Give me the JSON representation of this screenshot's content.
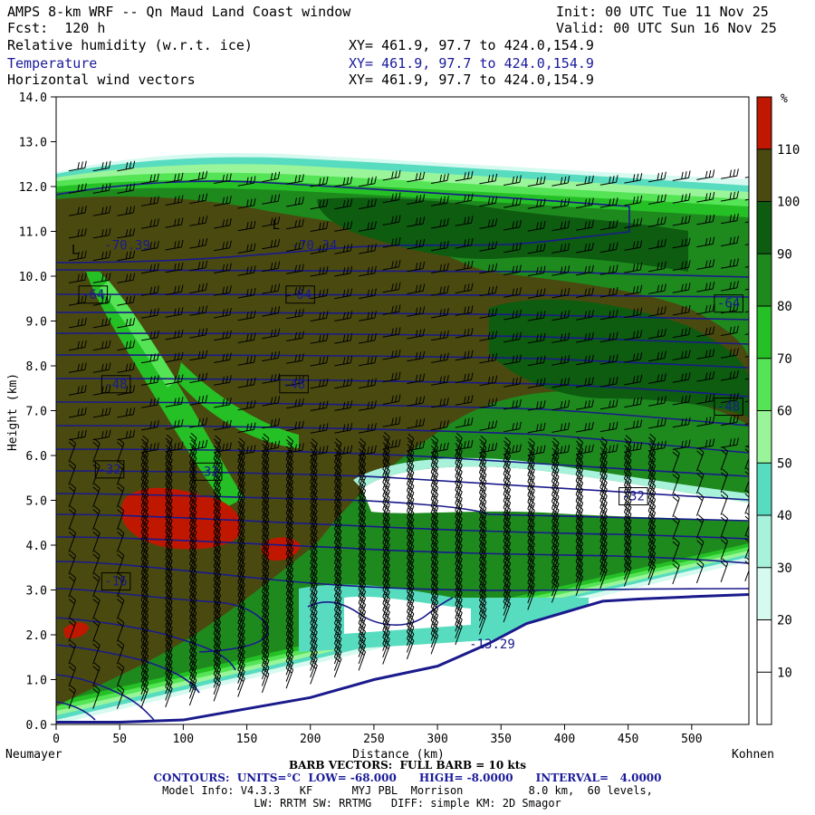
{
  "header": {
    "title": "AMPS 8-km WRF -- Qn Maud Land Coast window",
    "init": "Init: 00 UTC Tue 11 Nov 25",
    "fcst": "Fcst:  120 h",
    "valid": "Valid: 00 UTC Sun 16 Nov 25",
    "fields": [
      {
        "name": "Relative humidity (w.r.t. ice)",
        "xy": "XY= 461.9, 97.7 to 424.0,154.9"
      },
      {
        "name": "Temperature",
        "xy": "XY= 461.9, 97.7 to 424.0,154.9"
      },
      {
        "name": "Horizontal wind vectors",
        "xy": "XY= 461.9, 97.7 to 424.0,154.9"
      }
    ]
  },
  "colors": {
    "temperature_contour": "#1a1a8c",
    "terrain": "#ffffff",
    "rh_bins": [
      "#ffffff",
      "#ffffff",
      "#d6faf0",
      "#a8f2dc",
      "#58dcc0",
      "#9af59a",
      "#55e455",
      "#25c025",
      "#1e8a1e",
      "#0d5c10",
      "#4a4a10",
      "#c01800"
    ]
  },
  "chart_data": {
    "type": "heatmap",
    "subtype": "vertical cross-section",
    "ylabel": "Height (km)",
    "xlabel": "Distance (km)",
    "xlim": [
      0,
      545
    ],
    "ylim": [
      0,
      14
    ],
    "x_ticks": [
      0,
      50,
      100,
      150,
      200,
      250,
      300,
      350,
      400,
      450,
      500
    ],
    "y_ticks": [
      "0.0",
      "1.0",
      "2.0",
      "3.0",
      "4.0",
      "5.0",
      "6.0",
      "7.0",
      "8.0",
      "9.0",
      "10.0",
      "11.0",
      "12.0",
      "13.0",
      "14.0"
    ],
    "left_endpoint": "Neumayer",
    "right_endpoint": "Kohnen",
    "colorbar": {
      "unit": "%",
      "labels": [
        "10",
        "20",
        "30",
        "40",
        "50",
        "60",
        "70",
        "80",
        "90",
        "100",
        "110"
      ],
      "bounds": [
        0,
        120
      ]
    },
    "terrain_height": {
      "x": [
        0,
        50,
        100,
        150,
        200,
        250,
        300,
        340,
        370,
        400,
        430,
        460,
        500,
        545
      ],
      "y": [
        0.05,
        0.05,
        0.1,
        0.35,
        0.6,
        1.0,
        1.3,
        1.8,
        2.25,
        2.5,
        2.75,
        2.8,
        2.85,
        2.9
      ]
    },
    "temperature_labels": [
      {
        "text": "-70.39",
        "x": 38,
        "y": 10.7
      },
      {
        "text": "-70.34",
        "x": 185,
        "y": 10.7
      },
      {
        "text": "-64",
        "x": 20,
        "y": 9.6
      },
      {
        "text": "-64",
        "x": 183,
        "y": 9.6
      },
      {
        "text": "-64",
        "x": 520,
        "y": 9.4
      },
      {
        "text": "-48",
        "x": 38,
        "y": 7.6
      },
      {
        "text": "-48",
        "x": 178,
        "y": 7.6
      },
      {
        "text": "-48",
        "x": 520,
        "y": 7.1
      },
      {
        "text": "-32",
        "x": 33,
        "y": 5.7
      },
      {
        "text": "-32",
        "x": 110,
        "y": 5.65
      },
      {
        "text": "-32",
        "x": 445,
        "y": 5.1
      },
      {
        "text": "-16",
        "x": 38,
        "y": 3.2
      },
      {
        "text": "-13.29",
        "x": 325,
        "y": 1.8
      }
    ],
    "extrema_markers": [
      {
        "text": "L",
        "x": 12,
        "y": 10.6
      },
      {
        "text": "L",
        "x": 170,
        "y": 11.15
      }
    ],
    "temperature_contours": {
      "units": "°C",
      "low": -68.0,
      "high": -8.0,
      "interval": 4.0
    }
  },
  "footer": {
    "barb": "BARB VECTORS:  FULL BARB = 10 kts",
    "contours": "CONTOURS:  UNITS=°C  LOW= -68.000      HIGH= -8.0000      INTERVAL=   4.0000",
    "model": "Model Info: V4.3.3   KF      MYJ PBL  Morrison          8.0 km,  60 levels,",
    "phys": "LW: RRTM SW: RRTMG   DIFF: simple KM: 2D Smagor"
  }
}
